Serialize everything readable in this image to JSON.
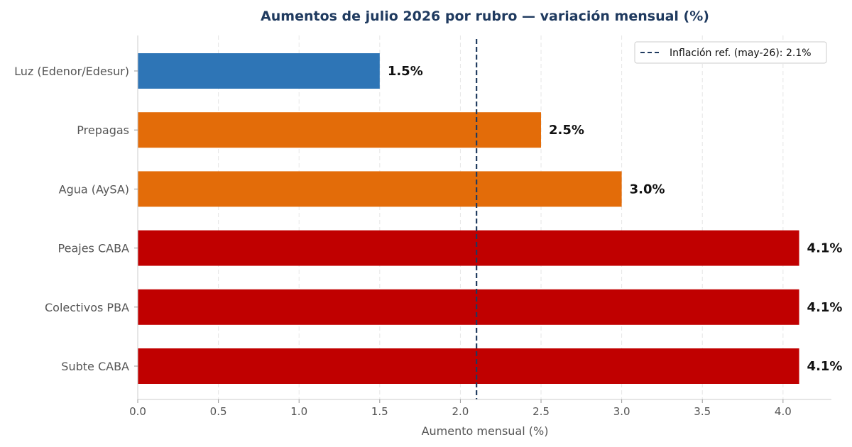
{
  "chart_data": {
    "type": "bar",
    "orientation": "horizontal",
    "title": "Aumentos de julio 2026 por rubro — variación mensual (%)",
    "xlabel": "Aumento mensual (%)",
    "ylabel": "",
    "xlim": [
      0,
      4.3
    ],
    "xticks": [
      "0.0",
      "0.5",
      "1.0",
      "1.5",
      "2.0",
      "2.5",
      "3.0",
      "3.5",
      "4.0"
    ],
    "categories": [
      "Luz (Edenor/Edesur)",
      "Prepagas",
      "Agua (AySA)",
      "Peajes CABA",
      "Colectivos PBA",
      "Subte CABA"
    ],
    "values": [
      1.5,
      2.5,
      3.0,
      4.1,
      4.1,
      4.1
    ],
    "value_labels": [
      "1.5%",
      "2.5%",
      "3.0%",
      "4.1%",
      "4.1%",
      "4.1%"
    ],
    "colors": [
      "#2e75b6",
      "#e36c09",
      "#e36c09",
      "#c00000",
      "#c00000",
      "#c00000"
    ],
    "reference_line": {
      "x": 2.1,
      "label": "Inflación ref. (may-26): 2.1%",
      "color": "#1f3a5f",
      "style": "dashed"
    },
    "grid": {
      "x": true,
      "y": false,
      "style": "dashed"
    },
    "legend_position": "top-right"
  }
}
